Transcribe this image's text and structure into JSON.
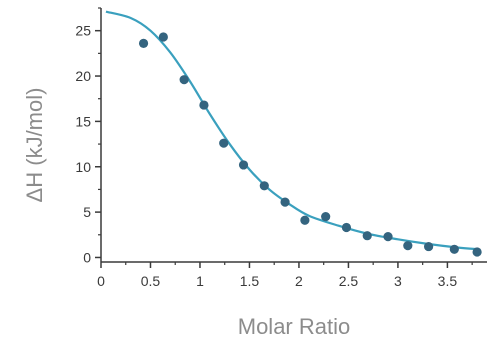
{
  "chart_data": {
    "type": "scatter",
    "xlabel": "Molar Ratio",
    "ylabel": "ΔH (kJ/mol)",
    "xlim": [
      0,
      3.9
    ],
    "ylim": [
      -0.5,
      27.5
    ],
    "x_ticks": [
      0,
      0.5,
      1,
      1.5,
      2,
      2.5,
      3,
      3.5
    ],
    "x_tick_labels": [
      "0",
      "0.5",
      "1",
      "1.5",
      "2",
      "2.5",
      "3",
      "3.5"
    ],
    "y_ticks": [
      0,
      5,
      10,
      15,
      20,
      25
    ],
    "y_tick_labels": [
      "0",
      "5",
      "10",
      "15",
      "20",
      "25"
    ],
    "grid": false,
    "series": [
      {
        "kind": "points",
        "color": "#34647f",
        "points": [
          {
            "x": 0.43,
            "y": 23.6
          },
          {
            "x": 0.63,
            "y": 24.3
          },
          {
            "x": 0.84,
            "y": 19.6
          },
          {
            "x": 1.04,
            "y": 16.8
          },
          {
            "x": 1.24,
            "y": 12.6
          },
          {
            "x": 1.44,
            "y": 10.2
          },
          {
            "x": 1.65,
            "y": 7.9
          },
          {
            "x": 1.86,
            "y": 6.1
          },
          {
            "x": 2.06,
            "y": 4.1
          },
          {
            "x": 2.27,
            "y": 4.5
          },
          {
            "x": 2.48,
            "y": 3.3
          },
          {
            "x": 2.69,
            "y": 2.4
          },
          {
            "x": 2.9,
            "y": 2.3
          },
          {
            "x": 3.1,
            "y": 1.3
          },
          {
            "x": 3.31,
            "y": 1.2
          },
          {
            "x": 3.57,
            "y": 0.9
          },
          {
            "x": 3.8,
            "y": 0.6
          }
        ]
      },
      {
        "kind": "fit-curve",
        "color": "#3aa0be",
        "points": [
          {
            "x": 0.05,
            "y": 27.1
          },
          {
            "x": 0.3,
            "y": 26.4
          },
          {
            "x": 0.5,
            "y": 25.0
          },
          {
            "x": 0.7,
            "y": 22.6
          },
          {
            "x": 0.9,
            "y": 19.4
          },
          {
            "x": 1.1,
            "y": 15.8
          },
          {
            "x": 1.3,
            "y": 12.5
          },
          {
            "x": 1.5,
            "y": 9.7
          },
          {
            "x": 1.7,
            "y": 7.5
          },
          {
            "x": 1.9,
            "y": 5.9
          },
          {
            "x": 2.1,
            "y": 4.6
          },
          {
            "x": 2.4,
            "y": 3.5
          },
          {
            "x": 2.7,
            "y": 2.6
          },
          {
            "x": 3.0,
            "y": 2.0
          },
          {
            "x": 3.3,
            "y": 1.5
          },
          {
            "x": 3.6,
            "y": 1.1
          },
          {
            "x": 3.82,
            "y": 0.9
          }
        ]
      }
    ]
  },
  "colors": {
    "axis": "#3a3a3a",
    "points": "#34647f",
    "fit": "#3aa0be",
    "axis_title": "#8c8c8c"
  }
}
